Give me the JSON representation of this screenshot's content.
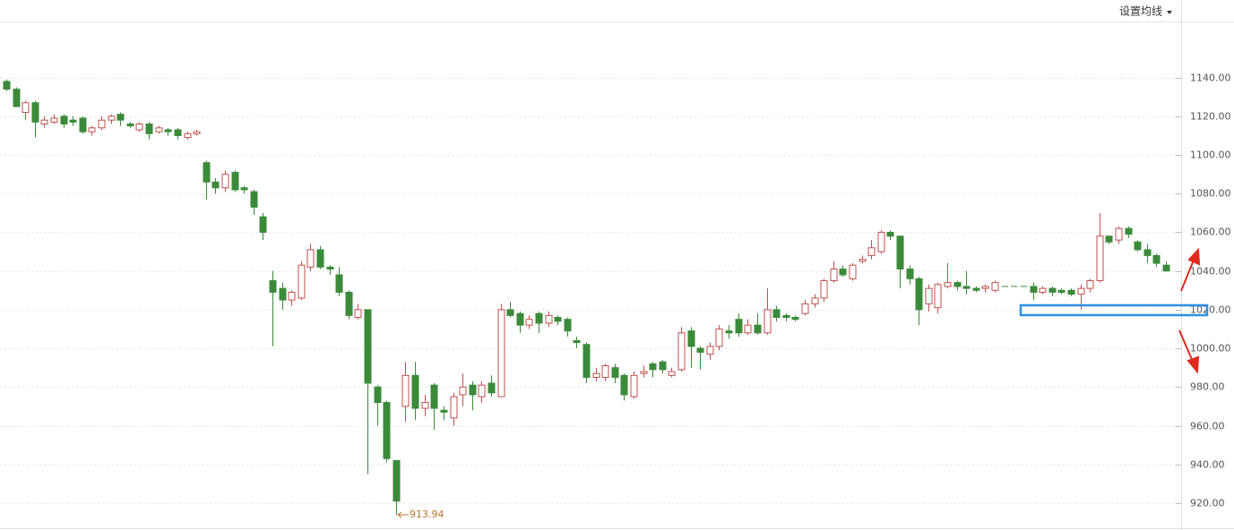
{
  "toolbar": {
    "ma_setting": "设置均线"
  },
  "chart_data": {
    "type": "candlestick",
    "up_color": "#c0504d",
    "down_color": "#3a8a3a",
    "annotation_color": "#b8732f",
    "grid": true,
    "ylim": [
      907,
      1169
    ],
    "yticks": [
      {
        "value": 920,
        "label": "920.00"
      },
      {
        "value": 940,
        "label": "940.00"
      },
      {
        "value": 960,
        "label": "960.00"
      },
      {
        "value": 980,
        "label": "980.00"
      },
      {
        "value": 1000,
        "label": "1000.00"
      },
      {
        "value": 1020,
        "label": "1020.00"
      },
      {
        "value": 1040,
        "label": "1040.00"
      },
      {
        "value": 1060,
        "label": "1060.00"
      },
      {
        "value": 1080,
        "label": "1080.00"
      },
      {
        "value": 1100,
        "label": "1100.00"
      },
      {
        "value": 1120,
        "label": "1120.00"
      },
      {
        "value": 1140,
        "label": "1140.00"
      }
    ],
    "open": [
      1138,
      1134,
      1122,
      1127,
      1116,
      1117,
      1120,
      1118,
      1119,
      1112,
      1114,
      1118,
      1121,
      1116,
      1113,
      1116,
      1112,
      1113,
      1113,
      1109,
      1111,
      1096,
      1086,
      1083,
      1091,
      1083,
      1081,
      1068,
      1035,
      1031,
      1025,
      1026,
      1042,
      1051,
      1042,
      1038,
      1029,
      1016,
      1020,
      980,
      972,
      942,
      970,
      986,
      969,
      981,
      968,
      964,
      976,
      981,
      975,
      982,
      975,
      1020,
      1018,
      1012,
      1018,
      1013,
      1016,
      1015,
      1004,
      1002,
      985,
      985,
      990,
      986,
      975,
      987,
      992,
      993,
      986,
      989,
      1009,
      1000,
      997,
      1001,
      1009,
      1015,
      1008,
      1012,
      1008,
      1020,
      1017,
      1016,
      1018,
      1023,
      1026,
      1035,
      1041,
      1036,
      1045,
      1048,
      1050,
      1060,
      1058,
      1041,
      1036,
      1023,
      1021,
      1032,
      1034,
      1032,
      1031,
      1031,
      1030,
      1032,
      1032,
      1032,
      1032,
      1029,
      1031,
      1030,
      1030,
      1028,
      1031,
      1035,
      1058,
      1056,
      1062,
      1055,
      1051,
      1048,
      1043
    ],
    "high": [
      1139,
      1135,
      1128,
      1128,
      1120,
      1121,
      1121,
      1120,
      1120,
      1115,
      1120,
      1121,
      1122,
      1117,
      1117,
      1117,
      1115,
      1114,
      1114,
      1112,
      1113,
      1097,
      1088,
      1092,
      1092,
      1084,
      1082,
      1070,
      1040,
      1034,
      1030,
      1045,
      1054,
      1053,
      1043,
      1042,
      1030,
      1023,
      1020,
      981,
      973,
      942,
      993,
      993,
      976,
      982,
      970,
      977,
      987,
      983,
      983,
      986,
      1023,
      1024,
      1019,
      1017,
      1019,
      1019,
      1017,
      1016,
      1006,
      1003,
      990,
      992,
      992,
      987,
      988,
      991,
      993,
      994,
      990,
      1011,
      1011,
      1001,
      1003,
      1012,
      1012,
      1018,
      1015,
      1018,
      1031,
      1022,
      1018,
      1017,
      1025,
      1028,
      1036,
      1045,
      1043,
      1044,
      1048,
      1056,
      1061,
      1061,
      1058,
      1043,
      1037,
      1033,
      1034,
      1044,
      1035,
      1040,
      1032,
      1033,
      1035,
      1032,
      1032,
      1032,
      1034,
      1032,
      1032,
      1031,
      1031,
      1033,
      1036,
      1070,
      1058,
      1063,
      1063,
      1056,
      1054,
      1049,
      1045
    ],
    "low": [
      1133,
      1127,
      1118,
      1109,
      1114,
      1116,
      1114,
      1115,
      1111,
      1110,
      1113,
      1116,
      1115,
      1114,
      1112,
      1108,
      1111,
      1110,
      1108,
      1108,
      1110,
      1077,
      1080,
      1081,
      1081,
      1080,
      1069,
      1056,
      1001,
      1020,
      1022,
      1025,
      1040,
      1041,
      1038,
      1027,
      1015,
      1015,
      935,
      960,
      941,
      913.94,
      962,
      963,
      965,
      958,
      963,
      960,
      970,
      968,
      972,
      975,
      975,
      1016,
      1008,
      1010,
      1008,
      1011,
      1012,
      1006,
      1000,
      982,
      983,
      983,
      982,
      973,
      974,
      985,
      985,
      987,
      985,
      988,
      990,
      989,
      994,
      999,
      1005,
      1006,
      1007,
      1007,
      1007,
      1014,
      1014,
      1014,
      1017,
      1021,
      1024,
      1034,
      1037,
      1035,
      1044,
      1046,
      1049,
      1056,
      1031,
      1033,
      1012,
      1019,
      1018,
      1031,
      1030,
      1028,
      1029,
      1029,
      1029,
      1032,
      1032,
      1032,
      1025,
      1028,
      1027,
      1028,
      1027,
      1020,
      1029,
      1034,
      1054,
      1054,
      1057,
      1050,
      1044,
      1042,
      1040
    ],
    "close": [
      1134,
      1125,
      1127,
      1117,
      1118,
      1119,
      1116,
      1117,
      1112,
      1114,
      1118,
      1120,
      1118,
      1115,
      1116,
      1111,
      1114,
      1112,
      1110,
      1111,
      1112,
      1086,
      1083,
      1090,
      1082,
      1082,
      1073,
      1060,
      1029,
      1025,
      1029,
      1043,
      1051,
      1042,
      1041,
      1029,
      1017,
      1020,
      982,
      972,
      943,
      921,
      986,
      969,
      972,
      969,
      967,
      975,
      980,
      976,
      981,
      977,
      1020,
      1017,
      1012,
      1015,
      1013,
      1017,
      1014,
      1009,
      1003,
      985,
      987,
      991,
      985,
      976,
      986,
      988,
      989,
      989,
      988,
      1008,
      1001,
      998,
      1001,
      1010,
      1008,
      1008,
      1012,
      1008,
      1020,
      1016,
      1016,
      1015,
      1023,
      1026,
      1035,
      1041,
      1038,
      1043,
      1046,
      1052,
      1060,
      1058,
      1041,
      1036,
      1020,
      1031,
      1033,
      1034,
      1032,
      1031,
      1030,
      1032,
      1034,
      1032,
      1032,
      1032,
      1029,
      1031,
      1029,
      1029,
      1028,
      1031,
      1035,
      1058,
      1055,
      1062,
      1059,
      1051,
      1048,
      1044,
      1040
    ]
  }
}
